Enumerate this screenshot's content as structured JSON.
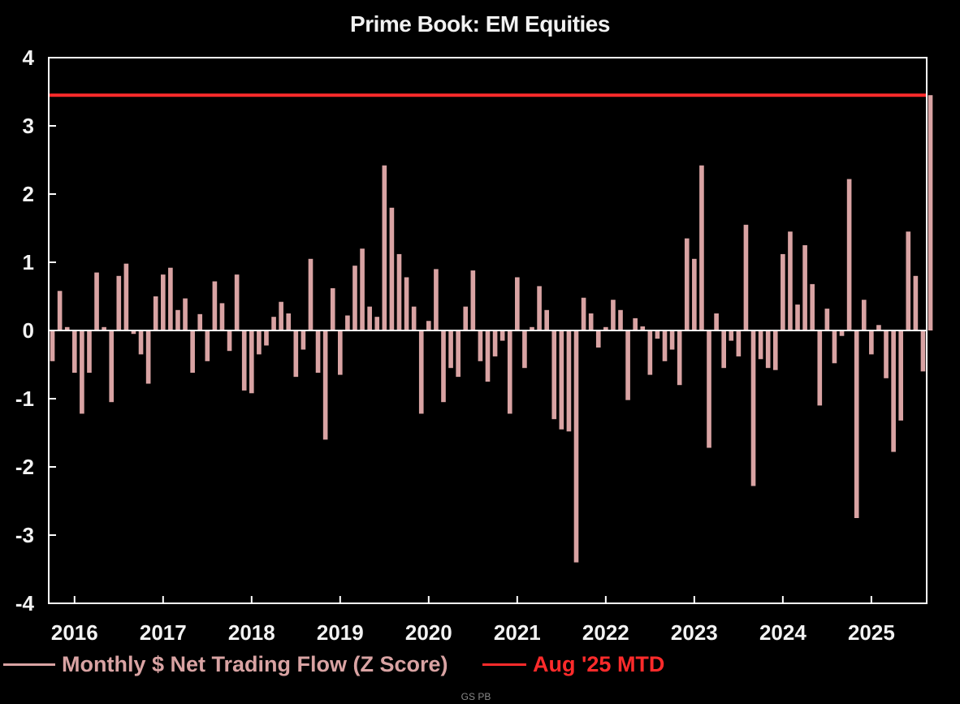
{
  "source_note": "GS PB",
  "chart_data": {
    "type": "bar",
    "title": "Prime Book: EM Equities",
    "xlabel": "",
    "ylabel": "",
    "ylim": [
      -4,
      4
    ],
    "yticks": [
      4,
      3,
      2,
      1,
      0,
      -1,
      -2,
      -3,
      -4
    ],
    "xticks": [
      "2016",
      "2017",
      "2018",
      "2019",
      "2020",
      "2021",
      "2022",
      "2023",
      "2024",
      "2025"
    ],
    "x_start": "2015-10",
    "x_end": "2025-08",
    "grid": false,
    "legend_position": "bottom",
    "colors": {
      "bars": "#d9a3a3",
      "reference_line": "#ff2b2b",
      "axis": "#ffffff",
      "background": "#000000"
    },
    "series": [
      {
        "name": "Monthly $ Net Trading Flow (Z Score)",
        "type": "bar",
        "start": "2015-10",
        "values": [
          -0.45,
          0.58,
          0.05,
          -0.62,
          -1.22,
          -0.62,
          0.85,
          0.05,
          -1.05,
          0.8,
          0.98,
          -0.05,
          -0.35,
          -0.78,
          0.5,
          0.82,
          0.92,
          0.3,
          0.47,
          -0.62,
          0.24,
          -0.45,
          0.72,
          0.4,
          -0.3,
          0.82,
          -0.88,
          -0.92,
          -0.35,
          -0.22,
          0.2,
          0.42,
          0.25,
          -0.68,
          -0.28,
          1.05,
          -0.62,
          -1.6,
          0.62,
          -0.65,
          0.22,
          0.95,
          1.2,
          0.35,
          0.2,
          2.42,
          1.8,
          1.12,
          0.78,
          0.35,
          -1.22,
          0.14,
          0.9,
          -1.05,
          -0.55,
          -0.68,
          0.35,
          0.88,
          -0.45,
          -0.75,
          -0.38,
          -0.15,
          -1.22,
          0.78,
          -0.55,
          0.05,
          0.65,
          0.3,
          -1.3,
          -1.45,
          -1.48,
          -3.4,
          0.48,
          0.25,
          -0.25,
          0.05,
          0.45,
          0.3,
          -1.02,
          0.18,
          0.06,
          -0.65,
          -0.12,
          -0.45,
          -0.28,
          -0.8,
          1.35,
          1.05,
          2.42,
          -1.72,
          0.25,
          -0.55,
          -0.15,
          -0.38,
          1.55,
          -2.28,
          -0.42,
          -0.55,
          -0.58,
          1.12,
          1.45,
          0.38,
          1.25,
          0.68,
          -1.1,
          0.32,
          -0.48,
          -0.08,
          2.22,
          -2.75,
          0.45,
          -0.35,
          0.08,
          -0.7,
          -1.78,
          -1.32,
          1.45,
          0.8,
          -0.6,
          3.45
        ]
      },
      {
        "name": "Aug '25 MTD",
        "type": "reference_line",
        "value": 3.45
      }
    ]
  }
}
